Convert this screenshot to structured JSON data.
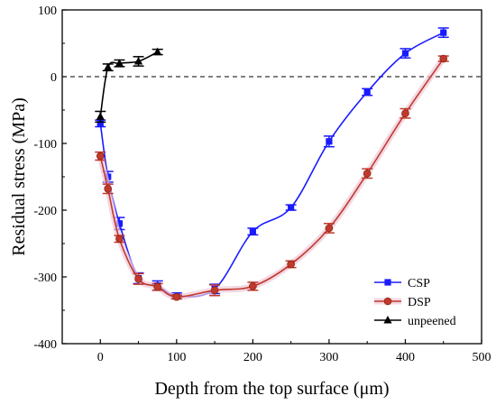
{
  "chart_data": {
    "type": "line",
    "xlabel": "Depth from the top surface (μm)",
    "ylabel": "Residual stress (MPa)",
    "xlim": [
      -50,
      500
    ],
    "ylim": [
      -400,
      100
    ],
    "x_ticks": [
      0,
      100,
      200,
      300,
      400,
      500
    ],
    "y_ticks": [
      100,
      0,
      -100,
      -200,
      -300,
      -400
    ],
    "reference_line": {
      "y": 0,
      "style": "dashed"
    },
    "legend_position": "bottom-right",
    "series": [
      {
        "name": "CSP",
        "color": "#1a1aff",
        "marker": "square",
        "points": [
          {
            "x": 0,
            "y": -70,
            "err": 5
          },
          {
            "x": 10,
            "y": -150,
            "err": 8
          },
          {
            "x": 25,
            "y": -220,
            "err": 9
          },
          {
            "x": 50,
            "y": -302,
            "err": 8
          },
          {
            "x": 75,
            "y": -313,
            "err": 7
          },
          {
            "x": 100,
            "y": -328,
            "err": 4
          },
          {
            "x": 150,
            "y": -318,
            "err": 7
          },
          {
            "x": 200,
            "y": -232,
            "err": 5
          },
          {
            "x": 250,
            "y": -196,
            "err": 4
          },
          {
            "x": 300,
            "y": -97,
            "err": 8
          },
          {
            "x": 350,
            "y": -23,
            "err": 5
          },
          {
            "x": 400,
            "y": 35,
            "err": 7
          },
          {
            "x": 450,
            "y": 66,
            "err": 7
          }
        ]
      },
      {
        "name": "DSP",
        "color": "#c0392b",
        "marker": "circle",
        "points": [
          {
            "x": 0,
            "y": -119,
            "err": 6
          },
          {
            "x": 10,
            "y": -168,
            "err": 7
          },
          {
            "x": 25,
            "y": -243,
            "err": 5
          },
          {
            "x": 50,
            "y": -303,
            "err": 8
          },
          {
            "x": 75,
            "y": -315,
            "err": 5
          },
          {
            "x": 100,
            "y": -330,
            "err": 3
          },
          {
            "x": 150,
            "y": -320,
            "err": 8
          },
          {
            "x": 200,
            "y": -314,
            "err": 6
          },
          {
            "x": 250,
            "y": -281,
            "err": 5
          },
          {
            "x": 300,
            "y": -227,
            "err": 7
          },
          {
            "x": 350,
            "y": -145,
            "err": 7
          },
          {
            "x": 400,
            "y": -55,
            "err": 7
          },
          {
            "x": 450,
            "y": 27,
            "err": 4
          }
        ]
      },
      {
        "name": "unpeened",
        "color": "#000000",
        "marker": "triangle",
        "points": [
          {
            "x": 0,
            "y": -60,
            "err": 8
          },
          {
            "x": 10,
            "y": 14,
            "err": 5
          },
          {
            "x": 25,
            "y": 20,
            "err": 5
          },
          {
            "x": 50,
            "y": 23,
            "err": 7
          },
          {
            "x": 75,
            "y": 37,
            "err": 4
          }
        ]
      }
    ]
  }
}
